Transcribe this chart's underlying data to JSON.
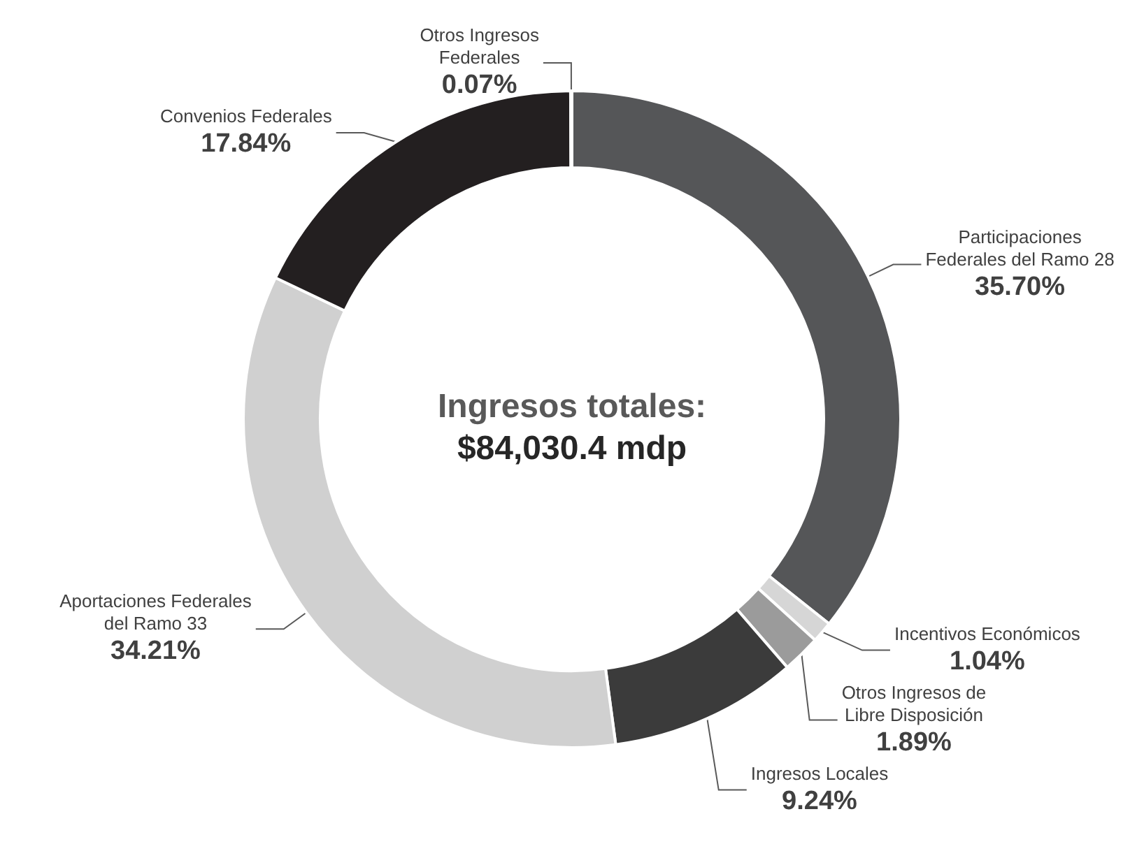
{
  "chart_data": {
    "type": "donut",
    "title": "Ingresos totales:",
    "subtitle": "$84,030.4 mdp",
    "categories": [
      "Participaciones Federales del Ramo 28",
      "Incentivos Económicos",
      "Otros Ingresos de Libre Disposición",
      "Ingresos Locales",
      "Aportaciones Federales del Ramo 33",
      "Convenios Federales",
      "Otros Ingresos Federales"
    ],
    "values": [
      35.7,
      1.04,
      1.89,
      9.24,
      34.21,
      17.84,
      0.07
    ],
    "value_labels": [
      "35.70%",
      "1.04%",
      "1.89%",
      "9.24%",
      "34.21%",
      "17.84%",
      "0.07%"
    ],
    "colors": [
      "#555658",
      "#d6d6d6",
      "#9b9b9b",
      "#3b3b3b",
      "#d0d0d0",
      "#231f20",
      "#808080"
    ],
    "legend": false
  }
}
